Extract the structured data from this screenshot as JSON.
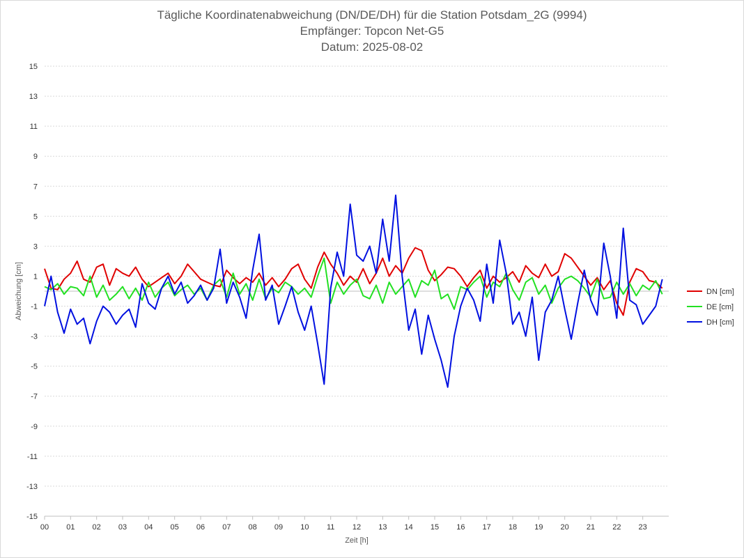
{
  "chart_data": {
    "type": "line",
    "title": [
      "Tägliche Koordinatenabweichung (DN/DE/DH) für die Station Potsdam_2G (9994)",
      "Empfänger: Topcon Net-G5",
      "Datum: 2025-08-02"
    ],
    "xlabel": "Zeit [h]",
    "ylabel": "Abweichung [cm]",
    "xlim": [
      0,
      24
    ],
    "ylim": [
      -15,
      15
    ],
    "yticks": [
      15,
      13,
      11,
      9,
      7,
      5,
      3,
      1,
      -1,
      -3,
      -5,
      -7,
      -9,
      -11,
      -13,
      -15
    ],
    "xticks": [
      "00",
      "01",
      "02",
      "03",
      "04",
      "05",
      "06",
      "07",
      "08",
      "09",
      "10",
      "11",
      "12",
      "13",
      "14",
      "15",
      "16",
      "17",
      "18",
      "19",
      "20",
      "21",
      "22",
      "23"
    ],
    "grid": true,
    "legend_position": "right",
    "x": [
      0,
      0.25,
      0.5,
      0.75,
      1,
      1.25,
      1.5,
      1.75,
      2,
      2.25,
      2.5,
      2.75,
      3,
      3.25,
      3.5,
      3.75,
      4,
      4.25,
      4.5,
      4.75,
      5,
      5.25,
      5.5,
      5.75,
      6,
      6.25,
      6.5,
      6.75,
      7,
      7.25,
      7.5,
      7.75,
      8,
      8.25,
      8.5,
      8.75,
      9,
      9.25,
      9.5,
      9.75,
      10,
      10.25,
      10.5,
      10.75,
      11,
      11.25,
      11.5,
      11.75,
      12,
      12.25,
      12.5,
      12.75,
      13,
      13.25,
      13.5,
      13.75,
      14,
      14.25,
      14.5,
      14.75,
      15,
      15.25,
      15.5,
      15.75,
      16,
      16.25,
      16.5,
      16.75,
      17,
      17.25,
      17.5,
      17.75,
      18,
      18.25,
      18.5,
      18.75,
      19,
      19.25,
      19.5,
      19.75,
      20,
      20.25,
      20.5,
      20.75,
      21,
      21.25,
      21.5,
      21.75,
      22,
      22.25,
      22.5,
      22.75,
      23,
      23.25,
      23.5,
      23.75
    ],
    "series": [
      {
        "name": "DN [cm]",
        "color": "#e00000",
        "values": [
          1.5,
          0.2,
          0.1,
          0.8,
          1.2,
          2.0,
          0.8,
          0.6,
          1.6,
          1.8,
          0.4,
          1.5,
          1.2,
          1.0,
          1.6,
          0.8,
          0.3,
          0.6,
          0.9,
          1.2,
          0.5,
          1.0,
          1.8,
          1.3,
          0.8,
          0.6,
          0.4,
          0.3,
          1.4,
          0.9,
          0.5,
          0.9,
          0.6,
          1.2,
          0.4,
          0.9,
          0.3,
          0.8,
          1.5,
          1.8,
          0.8,
          0.2,
          1.6,
          2.6,
          1.8,
          1.2,
          0.4,
          1.0,
          0.6,
          1.5,
          0.5,
          1.2,
          2.2,
          1.0,
          1.7,
          1.2,
          2.2,
          2.9,
          2.7,
          1.4,
          0.7,
          1.1,
          1.6,
          1.5,
          1.0,
          0.3,
          0.9,
          1.4,
          0.2,
          1.0,
          0.6,
          0.9,
          1.3,
          0.6,
          1.7,
          1.2,
          0.9,
          1.8,
          1.0,
          1.3,
          2.5,
          2.2,
          1.6,
          1.0,
          0.4,
          0.9,
          0.1,
          0.7,
          -0.8,
          -1.6,
          0.6,
          1.5,
          1.3,
          0.7,
          0.6,
          0.2
        ]
      },
      {
        "name": "DE [cm]",
        "color": "#22e022",
        "values": [
          0.3,
          0.1,
          0.5,
          -0.2,
          0.3,
          0.2,
          -0.3,
          1.0,
          -0.4,
          0.4,
          -0.6,
          -0.2,
          0.3,
          -0.5,
          0.2,
          -0.6,
          0.6,
          -0.4,
          0.2,
          0.6,
          -0.3,
          0.1,
          0.4,
          -0.2,
          0.2,
          -0.6,
          0.4,
          0.8,
          -0.4,
          1.2,
          -0.2,
          0.5,
          -0.6,
          0.8,
          -0.5,
          0.2,
          -0.1,
          0.6,
          0.3,
          -0.2,
          0.2,
          -0.4,
          1.0,
          2.2,
          -0.8,
          0.6,
          -0.2,
          0.4,
          0.8,
          -0.3,
          -0.5,
          0.4,
          -0.8,
          0.6,
          -0.2,
          0.3,
          0.8,
          -0.4,
          0.7,
          0.4,
          1.4,
          -0.5,
          -0.2,
          -1.2,
          0.3,
          0.1,
          0.6,
          1.0,
          -0.4,
          0.6,
          0.3,
          1.2,
          0.1,
          -0.6,
          0.6,
          0.9,
          -0.2,
          0.4,
          -0.8,
          0.2,
          0.8,
          1.0,
          0.7,
          0.2,
          -0.4,
          0.8,
          -0.5,
          -0.4,
          0.6,
          -0.2,
          0.5,
          -0.3,
          0.4,
          0.1,
          0.7,
          -0.2
        ]
      },
      {
        "name": "DH [cm]",
        "color": "#0010e0",
        "values": [
          -1.0,
          1.0,
          -1.4,
          -2.8,
          -1.2,
          -2.2,
          -1.8,
          -3.5,
          -2.0,
          -1.0,
          -1.4,
          -2.2,
          -1.6,
          -1.2,
          -2.4,
          0.5,
          -0.8,
          -1.2,
          0.2,
          1.0,
          -0.2,
          0.6,
          -0.8,
          -0.3,
          0.4,
          -0.6,
          0.2,
          2.8,
          -0.8,
          0.6,
          -0.4,
          -1.8,
          1.4,
          3.8,
          -0.6,
          0.4,
          -2.2,
          -1.0,
          0.3,
          -1.4,
          -2.6,
          -1.0,
          -3.5,
          -6.2,
          0.2,
          2.6,
          1.0,
          5.8,
          2.4,
          2.0,
          3.0,
          1.2,
          4.8,
          2.0,
          6.4,
          1.0,
          -2.6,
          -1.2,
          -4.2,
          -1.6,
          -3.2,
          -4.6,
          -6.4,
          -3.0,
          -1.0,
          0.2,
          -0.6,
          -2.0,
          1.8,
          -0.8,
          3.4,
          1.2,
          -2.2,
          -1.4,
          -3.0,
          -0.4,
          -4.6,
          -1.4,
          -0.6,
          1.0,
          -1.2,
          -3.2,
          -0.8,
          1.4,
          -0.6,
          -1.6,
          3.2,
          1.0,
          -1.8,
          4.2,
          -0.6,
          -0.9,
          -2.2,
          -1.6,
          -1.0,
          0.8
        ]
      }
    ]
  }
}
